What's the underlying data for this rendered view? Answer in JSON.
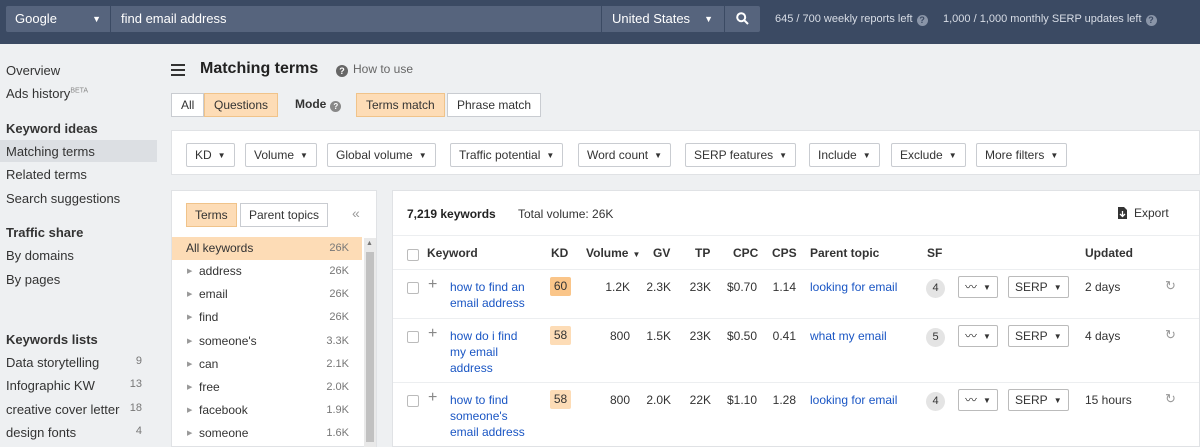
{
  "topbar": {
    "engine": "Google",
    "query": "find email address",
    "country": "United States",
    "weekly_reports": "645 / 700 weekly reports left",
    "monthly_updates": "1,000 / 1,000 monthly SERP updates left"
  },
  "sidebar": {
    "overview": "Overview",
    "ads_history": "Ads history",
    "ads_history_badge": "BETA",
    "keyword_ideas_heading": "Keyword ideas",
    "keyword_ideas": [
      "Matching terms",
      "Related terms",
      "Search suggestions"
    ],
    "traffic_share_heading": "Traffic share",
    "traffic_share": [
      "By domains",
      "By pages"
    ],
    "keywords_lists_heading": "Keywords lists",
    "keywords_lists": [
      {
        "name": "Data storytelling",
        "count": "9"
      },
      {
        "name": "Infographic KW",
        "count": "13"
      },
      {
        "name": "creative cover letter",
        "count": "18"
      },
      {
        "name": "design fonts",
        "count": "4"
      }
    ]
  },
  "header": {
    "title": "Matching terms",
    "how_to_use": "How to use",
    "scope": [
      "All",
      "Questions"
    ],
    "mode_label": "Mode",
    "modes": [
      "Terms match",
      "Phrase match"
    ]
  },
  "filters": [
    "KD",
    "Volume",
    "Global volume",
    "Traffic potential",
    "Word count",
    "SERP features",
    "Include",
    "Exclude",
    "More filters"
  ],
  "terms_panel": {
    "tabs": [
      "Terms",
      "Parent topics"
    ],
    "rows": [
      {
        "label": "All keywords",
        "count": "26K"
      },
      {
        "label": "address",
        "count": "26K"
      },
      {
        "label": "email",
        "count": "26K"
      },
      {
        "label": "find",
        "count": "26K"
      },
      {
        "label": "someone's",
        "count": "3.3K"
      },
      {
        "label": "can",
        "count": "2.1K"
      },
      {
        "label": "free",
        "count": "2.0K"
      },
      {
        "label": "facebook",
        "count": "1.9K"
      },
      {
        "label": "someone",
        "count": "1.6K"
      }
    ]
  },
  "results": {
    "count": "7,219 keywords",
    "total_volume": "Total volume: 26K",
    "export": "Export",
    "columns": {
      "keyword": "Keyword",
      "kd": "KD",
      "volume": "Volume",
      "gv": "GV",
      "tp": "TP",
      "cpc": "CPC",
      "cps": "CPS",
      "parent_topic": "Parent topic",
      "sf": "SF",
      "updated": "Updated"
    },
    "serp_label": "SERP",
    "rows": [
      {
        "keyword_lines": [
          "how to find an",
          "email address",
          ""
        ],
        "kd": "60",
        "volume": "1.2K",
        "gv": "2.3K",
        "tp": "23K",
        "cpc": "$0.70",
        "cps": "1.14",
        "parent_topic": "looking for email",
        "sf": "4",
        "updated": "2 days"
      },
      {
        "keyword_lines": [
          "how do i find",
          "my email",
          "address"
        ],
        "kd": "58",
        "volume": "800",
        "gv": "1.5K",
        "tp": "23K",
        "cpc": "$0.50",
        "cps": "0.41",
        "parent_topic": "what my email",
        "sf": "5",
        "updated": "4 days"
      },
      {
        "keyword_lines": [
          "how to find",
          "someone's",
          "email address"
        ],
        "kd": "58",
        "volume": "800",
        "gv": "2.0K",
        "tp": "22K",
        "cpc": "$1.10",
        "cps": "1.28",
        "parent_topic": "looking for email",
        "sf": "4",
        "updated": "15 hours"
      }
    ]
  }
}
